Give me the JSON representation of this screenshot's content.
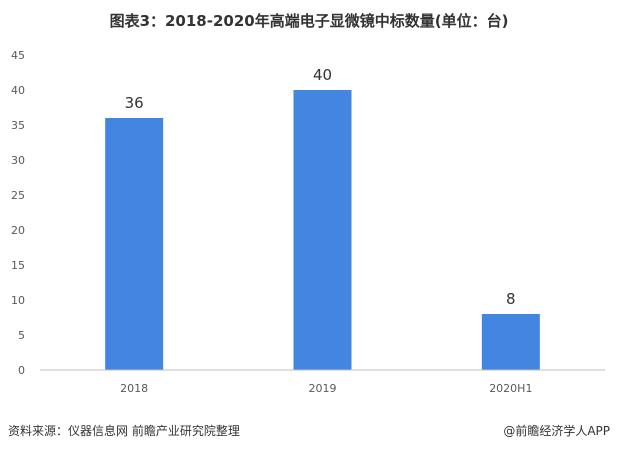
{
  "title": "图表3：2018-2020年高端电子显微镜中标数量(单位：台)",
  "source": "资料来源：仪器信息网 前瞻产业研究院整理",
  "brand": "@前瞻经济学人APP",
  "colors": {
    "bar": "#4386E1",
    "axis": "#BFBFBF",
    "text": "#595959"
  },
  "chart_data": {
    "type": "bar",
    "title": "图表3：2018-2020年高端电子显微镜中标数量(单位：台)",
    "xlabel": "",
    "ylabel": "",
    "categories": [
      "2018",
      "2019",
      "2020H1"
    ],
    "values": [
      36,
      40,
      8
    ],
    "data_labels": [
      "36",
      "40",
      "8"
    ],
    "ylim": [
      0,
      45
    ],
    "yticks": [
      0,
      5,
      10,
      15,
      20,
      25,
      30,
      35,
      40,
      45
    ],
    "grid": false,
    "legend": "none"
  }
}
